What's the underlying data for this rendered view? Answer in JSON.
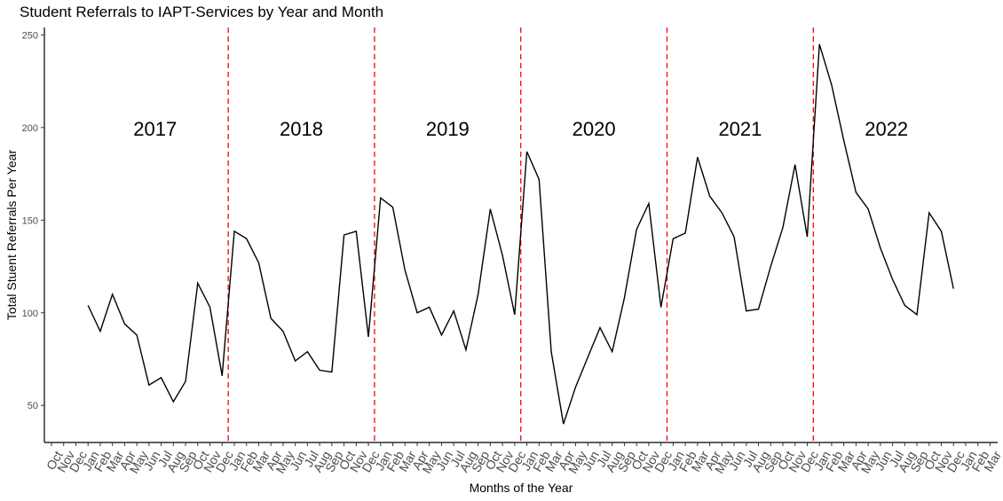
{
  "chart_data": {
    "type": "line",
    "title": "Student Referrals to IAPT-Services by Year and Month",
    "xlabel": "Months of the Year",
    "ylabel": "Total Stuent Referrals Per Year",
    "ylim": [
      30,
      254
    ],
    "y_ticks": [
      50,
      100,
      150,
      200,
      250
    ],
    "x_tick_labels": [
      "Oct",
      "Nov",
      "Dec",
      "Jan",
      "Feb",
      "Mar",
      "Apr",
      "May",
      "Jun",
      "Jul",
      "Aug",
      "Sep",
      "Oct",
      "Nov",
      "Dec",
      "Jan",
      "Feb",
      "Mar",
      "Apr",
      "May",
      "Jun",
      "Jul",
      "Aug",
      "Sep",
      "Oct",
      "Nov",
      "Dec",
      "Jan",
      "Feb",
      "Mar",
      "Apr",
      "May",
      "Jun",
      "Jul",
      "Aug",
      "Sep",
      "Oct",
      "Nov",
      "Dec",
      "Jan",
      "Feb",
      "Mar",
      "Apr",
      "May",
      "Jun",
      "Jul",
      "Aug",
      "Sep",
      "Oct",
      "Nov",
      "Dec",
      "Jan",
      "Feb",
      "Mar",
      "Apr",
      "May",
      "Jun",
      "Jul",
      "Aug",
      "Sep",
      "Oct",
      "Nov",
      "Dec",
      "Jan",
      "Feb",
      "Mar",
      "Apr",
      "May",
      "Jun",
      "Jul",
      "Aug",
      "Sep",
      "Oct",
      "Nov",
      "Dec",
      "Jan",
      "Feb",
      "Mar"
    ],
    "year_labels": [
      "2017",
      "2018",
      "2019",
      "2020",
      "2021",
      "2022"
    ],
    "year_boundaries_after_index": [
      14,
      26,
      38,
      50,
      62
    ],
    "grid": false,
    "line_color": "#000000",
    "boundary_line_color": "#ff0000",
    "series": [
      {
        "start_index": 3,
        "values": [
          104,
          90,
          110,
          94,
          88,
          61,
          65,
          52,
          63,
          116,
          103,
          66,
          144,
          140,
          127,
          97,
          90,
          74,
          79,
          69,
          68,
          142,
          144,
          87,
          162,
          157,
          123,
          100,
          103,
          88,
          101,
          80,
          110,
          156,
          131,
          99,
          187,
          172,
          79,
          40,
          60,
          76,
          92,
          79,
          108,
          145,
          159,
          103,
          140,
          143,
          184,
          163,
          154,
          141,
          101,
          102,
          125,
          146,
          180,
          141,
          245,
          223,
          193,
          165,
          156,
          135,
          118,
          104,
          99,
          154,
          144,
          113
        ]
      }
    ]
  }
}
